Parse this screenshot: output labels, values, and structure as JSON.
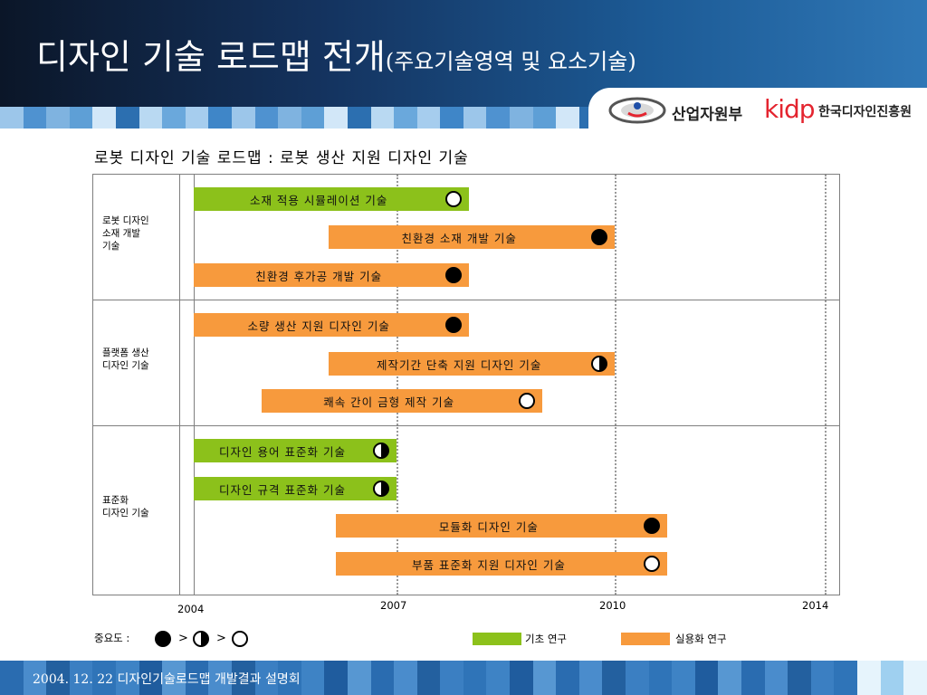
{
  "slide": {
    "title_main": "디자인 기술 로드맵 전개",
    "title_sub": "(주요기술영역 및 요소기술)",
    "footer": "2004. 12. 22 디자인기술로드맵 개발결과 설명회"
  },
  "logos": {
    "ministry": "산업자원부",
    "kidp": "kidp",
    "kidp_name": "한국디자인진흥원"
  },
  "colors": {
    "basic": "#8cc11b",
    "applied": "#f79a3d",
    "header_dark": "#0b1628",
    "header_accent": "#2f77b6"
  },
  "chart_data": {
    "type": "gantt",
    "title": "로봇 디자인 기술 로드맵 : 로봇 생산 지원 디자인 기술",
    "years": [
      "2004",
      "2007",
      "2010",
      "2014"
    ],
    "categories": [
      {
        "label": "로봇 디자인\n소재 개발\n기술",
        "items": [
          {
            "name": "소재 적용 시뮬레이션 기술",
            "start": 2004.0,
            "end": 2008.0,
            "type": "basic",
            "importance": "low"
          },
          {
            "name": "친환경 소재 개발 기술",
            "start": 2006.0,
            "end": 2010.0,
            "type": "applied",
            "importance": "high"
          },
          {
            "name": "친환경 후가공 개발 기술",
            "start": 2004.0,
            "end": 2008.0,
            "type": "applied",
            "importance": "high"
          }
        ]
      },
      {
        "label": "플랫폼 생산\n디자인 기술",
        "items": [
          {
            "name": "소량 생산 지원 디자인 기술",
            "start": 2004.0,
            "end": 2008.0,
            "type": "applied",
            "importance": "high"
          },
          {
            "name": "제작기간 단축 지원 디자인 기술",
            "start": 2006.0,
            "end": 2010.0,
            "type": "applied",
            "importance": "mid"
          },
          {
            "name": "쾌속 간이 금형 제작 기술",
            "start": 2005.0,
            "end": 2009.0,
            "type": "applied",
            "importance": "low"
          }
        ]
      },
      {
        "label": "표준화\n디자인 기술",
        "items": [
          {
            "name": "디자인 용어 표준화 기술",
            "start": 2004.0,
            "end": 2007.0,
            "type": "basic",
            "importance": "mid"
          },
          {
            "name": "디자인 규격 표준화 기술",
            "start": 2004.0,
            "end": 2007.0,
            "type": "basic",
            "importance": "mid"
          },
          {
            "name": "모듈화 디자인 기술",
            "start": 2006.1,
            "end": 2011.0,
            "type": "applied",
            "importance": "high"
          },
          {
            "name": "부품 표준화 지원 디자인 기술",
            "start": 2006.1,
            "end": 2011.0,
            "type": "applied",
            "importance": "low"
          }
        ]
      }
    ],
    "legend": {
      "importance_label": "중요도 :",
      "importance_order": [
        "high",
        "mid",
        "low"
      ],
      "gt": ">",
      "types": [
        {
          "key": "basic",
          "label": "기초 연구"
        },
        {
          "key": "applied",
          "label": "실용화 연구"
        }
      ]
    }
  }
}
